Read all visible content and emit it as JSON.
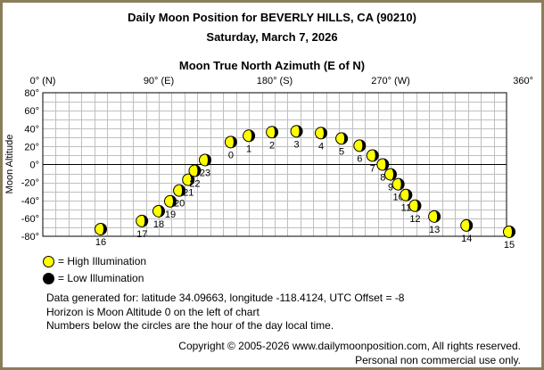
{
  "title_line1": "Daily Moon Position for BEVERLY HILLS, CA (90210)",
  "title_line2": "Saturday, March 7, 2026",
  "colors": {
    "high": "#ffff00",
    "low": "#000000",
    "border": "#8b7d5a",
    "grid": "#bfbfbf"
  },
  "legend": {
    "high_label": "= High Illumination",
    "low_label": "= Low Illumination"
  },
  "info": {
    "line1": "Data generated for: latitude 34.09663, longitude -118.4124, UTC Offset = -8",
    "line2": "Horizon is Moon Altitude 0 on the left of chart",
    "line3": "Numbers below the circles are the hour of the day local time."
  },
  "copyright": {
    "line1": "Copyright © 2005-2026 www.dailymoonposition.com, All rights reserved.",
    "line2": "Personal non commercial use only."
  },
  "chart_data": {
    "type": "scatter",
    "xlabel": "Moon True North Azimuth (E of N)",
    "ylabel": "Moon Altitude",
    "xlim": [
      0,
      360
    ],
    "ylim": [
      -80,
      80
    ],
    "x_ticks": [
      {
        "value": 0,
        "label": "0° (N)"
      },
      {
        "value": 90,
        "label": "90° (E)"
      },
      {
        "value": 180,
        "label": "180° (S)"
      },
      {
        "value": 270,
        "label": "270° (W)"
      },
      {
        "value": 360,
        "label": "360°"
      }
    ],
    "y_ticks": [
      {
        "value": 80,
        "label": "80°"
      },
      {
        "value": 60,
        "label": "60°"
      },
      {
        "value": 40,
        "label": "40°"
      },
      {
        "value": 20,
        "label": "20°"
      },
      {
        "value": 0,
        "label": "0°"
      },
      {
        "value": -20,
        "label": "-20°"
      },
      {
        "value": -40,
        "label": "-40°"
      },
      {
        "value": -60,
        "label": "-60°"
      },
      {
        "value": -80,
        "label": "-80°"
      }
    ],
    "grid": true,
    "points": [
      {
        "hour": "16",
        "azimuth": 45,
        "altitude": -72
      },
      {
        "hour": "17",
        "azimuth": 77,
        "altitude": -63
      },
      {
        "hour": "18",
        "azimuth": 90,
        "altitude": -52
      },
      {
        "hour": "19",
        "azimuth": 99,
        "altitude": -41
      },
      {
        "hour": "20",
        "azimuth": 106,
        "altitude": -29
      },
      {
        "hour": "21",
        "azimuth": 113,
        "altitude": -17
      },
      {
        "hour": "22",
        "azimuth": 118,
        "altitude": -7
      },
      {
        "hour": "23",
        "azimuth": 126,
        "altitude": 5
      },
      {
        "hour": "0",
        "azimuth": 146,
        "altitude": 25
      },
      {
        "hour": "1",
        "azimuth": 160,
        "altitude": 32
      },
      {
        "hour": "2",
        "azimuth": 178,
        "altitude": 36
      },
      {
        "hour": "3",
        "azimuth": 197,
        "altitude": 37
      },
      {
        "hour": "4",
        "azimuth": 216,
        "altitude": 35
      },
      {
        "hour": "5",
        "azimuth": 232,
        "altitude": 29
      },
      {
        "hour": "6",
        "azimuth": 246,
        "altitude": 21
      },
      {
        "hour": "7",
        "azimuth": 256,
        "altitude": 10
      },
      {
        "hour": "8",
        "azimuth": 264,
        "altitude": 0
      },
      {
        "hour": "9",
        "azimuth": 270,
        "altitude": -11
      },
      {
        "hour": "10",
        "azimuth": 276,
        "altitude": -22
      },
      {
        "hour": "11",
        "azimuth": 282,
        "altitude": -34
      },
      {
        "hour": "12",
        "azimuth": 289,
        "altitude": -46
      },
      {
        "hour": "13",
        "azimuth": 304,
        "altitude": -58
      },
      {
        "hour": "14",
        "azimuth": 329,
        "altitude": -68
      },
      {
        "hour": "15",
        "azimuth": 372,
        "altitude": -75
      }
    ]
  }
}
